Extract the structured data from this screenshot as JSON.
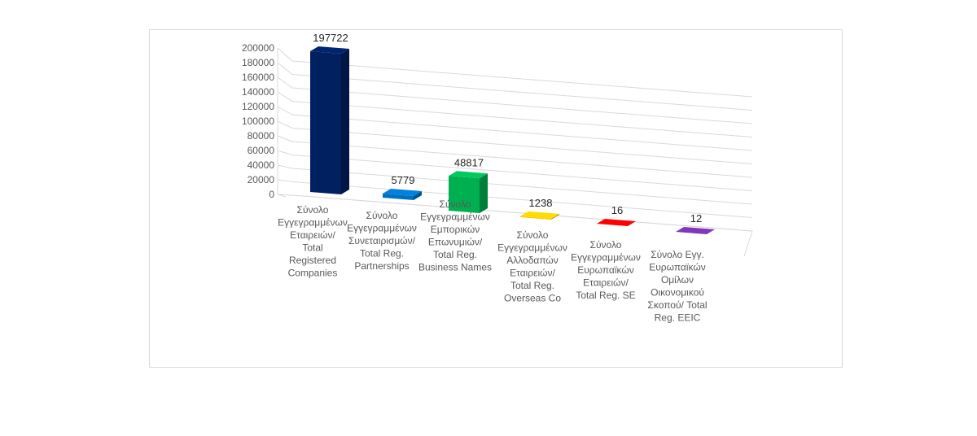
{
  "chart_data": {
    "type": "bar",
    "title": "",
    "xlabel": "",
    "ylabel": "",
    "ylim": [
      0,
      200000
    ],
    "yticks": [
      0,
      20000,
      40000,
      60000,
      80000,
      100000,
      120000,
      140000,
      160000,
      180000,
      200000
    ],
    "grid": true,
    "legend": "none",
    "categories": [
      "Σύνολο Εγγεγραμμένων Εταιρειών/ Total Registered Companies",
      "Σύνολο Εγγεγραμμένων Συνεταιρισμών/ Total Reg. Partnerships",
      "Σύνολο Εγγεγραμμένων Εμπορικών Επωνυμιών/ Total Reg. Business Names",
      "Σύνολο Εγγεγραμμένων Αλλοδαπών Εταιρειών/ Total Reg. Overseas Co",
      "Σύνολο Εγγεγραμμένων Ευρωπαϊκών Εταιρειών/ Total Reg. SE",
      "Σύνολο Εγγ. Ευρωπαϊκών Ομίλων Οικονομικού Σκοπού/ Total Reg. EEIC"
    ],
    "category_lines": [
      [
        "Σύνολο",
        "Εγγεγραμμένων",
        "Εταιρειών/",
        "Total",
        "Registered",
        "Companies"
      ],
      [
        "Σύνολο",
        "Εγγεγραμμένων",
        "Συνεταιρισμών/",
        "Total Reg.",
        "Partnerships"
      ],
      [
        "Σύνολο",
        "Εγγεγραμμένων",
        "Εμπορικών",
        "Επωνυμιών/",
        "Total Reg.",
        "Business Names"
      ],
      [
        "Σύνολο",
        "Εγγεγραμμένων",
        "Αλλοδαπών",
        "Εταιρειών/",
        "Total Reg.",
        "Overseas Co"
      ],
      [
        "Σύνολο",
        "Εγγεγραμμένων",
        "Ευρωπαϊκών",
        "Εταιρειών/",
        "Total Reg. SE"
      ],
      [
        "Σύνολο Εγγ.",
        "Ευρωπαϊκών",
        "Ομίλων",
        "Οικονομικού",
        "Σκοπού/ Total",
        "Reg. EEIC"
      ]
    ],
    "values": [
      197722,
      5779,
      48817,
      1238,
      16,
      12
    ],
    "data_labels": [
      "197722",
      "5779",
      "48817",
      "1238",
      "16",
      "12"
    ],
    "colors": [
      "#002060",
      "#0070C0",
      "#00B050",
      "#FFC000",
      "#FF0000",
      "#7030A0"
    ]
  }
}
